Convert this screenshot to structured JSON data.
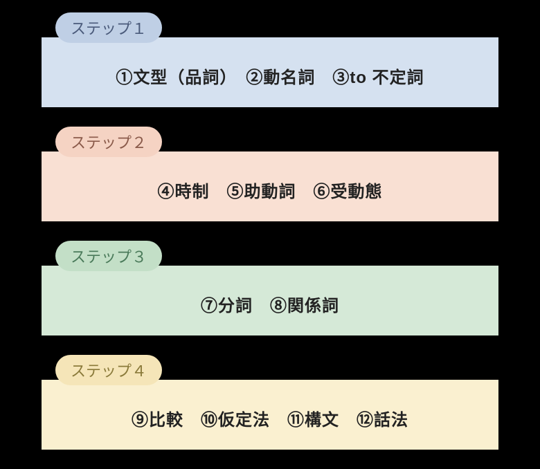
{
  "background_color": "#000000",
  "font_family": "Hiragino Maru Gothic ProN",
  "label_fontsize": 22,
  "body_fontsize": 24,
  "steps": [
    {
      "label": "ステップ１",
      "label_bg": "#bfcfe5",
      "label_color": "#4a5a7a",
      "box_bg": "#d5e1f0",
      "content": "①文型（品詞）　②動名詞　③to 不定詞"
    },
    {
      "label": "ステップ２",
      "label_bg": "#f5d3c3",
      "label_color": "#8a5a4a",
      "box_bg": "#f9e0d3",
      "content": "④時制　⑤助動詞　⑥受動態"
    },
    {
      "label": "ステップ３",
      "label_bg": "#c3dfc7",
      "label_color": "#4a7a5a",
      "box_bg": "#d5e9d7",
      "content": "⑦分詞　⑧関係詞"
    },
    {
      "label": "ステップ４",
      "label_bg": "#f5e5b8",
      "label_color": "#8a7a3a",
      "box_bg": "#faf0d0",
      "content": "⑨比較　⑩仮定法　⑪構文　⑫話法"
    }
  ]
}
